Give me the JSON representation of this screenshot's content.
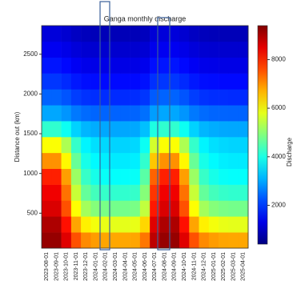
{
  "chart_data": {
    "type": "heatmap",
    "title": "Ganga monthly discharge",
    "y_label": "Distance out (km)",
    "colorbar_label": "Discharge",
    "x": [
      "2023-08-01",
      "2023-09-01",
      "2023-10-01",
      "2023-11-01",
      "2023-12-01",
      "2024-01-01",
      "2024-02-01",
      "2024-03-01",
      "2024-04-01",
      "2024-05-01",
      "2024-06-01",
      "2024-07-01",
      "2024-08-01",
      "2024-09-01",
      "2024-10-01",
      "2024-11-01",
      "2024-12-01",
      "2025-01-01",
      "2025-02-01",
      "2025-03-01",
      "2025-04-01"
    ],
    "y_bins": [
      60,
      260,
      460,
      660,
      860,
      1060,
      1260,
      1460,
      1660,
      1860,
      2060,
      2260,
      2460,
      2660,
      2860
    ],
    "ylim": [
      60,
      2860
    ],
    "yticks": [
      500,
      1000,
      1500,
      2000,
      2500
    ],
    "colormap": "jet",
    "zlim": [
      400,
      9400
    ],
    "zticks": [
      2000,
      4000,
      6000,
      8000
    ],
    "z": [
      [
        9200,
        9200,
        8550,
        7570,
        7060,
        6900,
        6820,
        6800,
        6800,
        6820,
        7230,
        8860,
        9200,
        9200,
        8550,
        7570,
        7060,
        6900,
        6820,
        6800,
        6800
      ],
      [
        9000,
        9000,
        8140,
        6820,
        6150,
        5930,
        5830,
        5800,
        5800,
        5830,
        6380,
        8550,
        9000,
        9000,
        8140,
        6820,
        6150,
        5930,
        5830,
        5800,
        5800
      ],
      [
        8600,
        8600,
        7570,
        6020,
        5220,
        4950,
        4840,
        4800,
        4800,
        4840,
        5480,
        8070,
        8600,
        8600,
        7570,
        6020,
        5220,
        4950,
        4840,
        4800,
        4800
      ],
      [
        8400,
        8400,
        7270,
        5540,
        4660,
        4370,
        4240,
        4200,
        4200,
        4240,
        4960,
        7810,
        8400,
        8400,
        7270,
        5540,
        4660,
        4370,
        4240,
        4200,
        4200
      ],
      [
        8000,
        8000,
        6870,
        5140,
        4260,
        3970,
        3840,
        3800,
        3800,
        3840,
        4560,
        7410,
        8000,
        8000,
        6870,
        5140,
        4260,
        3970,
        3840,
        3800,
        3800
      ],
      [
        7000,
        7000,
        6080,
        4690,
        3970,
        3740,
        3630,
        3600,
        3600,
        3630,
        4210,
        6520,
        7000,
        7000,
        6080,
        4690,
        3970,
        3740,
        3630,
        3600,
        3600
      ],
      [
        6000,
        6000,
        5300,
        4230,
        3690,
        3500,
        3430,
        3400,
        3400,
        3430,
        3870,
        5640,
        6000,
        6000,
        5300,
        4230,
        3690,
        3500,
        3430,
        3400,
        3400
      ],
      [
        4200,
        4200,
        3880,
        3380,
        3130,
        3050,
        3010,
        3000,
        3000,
        3010,
        3220,
        4030,
        4200,
        4200,
        3880,
        3380,
        3130,
        3050,
        3010,
        3000,
        3000
      ],
      [
        3000,
        3000,
        2840,
        2590,
        2470,
        2420,
        2410,
        2400,
        2400,
        2410,
        2510,
        2920,
        3000,
        3000,
        2840,
        2590,
        2470,
        2420,
        2410,
        2400,
        2400
      ],
      [
        2400,
        2400,
        2270,
        2060,
        1960,
        1920,
        1910,
        1900,
        1900,
        1910,
        1990,
        2330,
        2400,
        2400,
        2270,
        2060,
        1960,
        1920,
        1910,
        1900,
        1900
      ],
      [
        2000,
        2000,
        1890,
        1730,
        1640,
        1620,
        1600,
        1600,
        1600,
        1600,
        1670,
        1940,
        2000,
        2000,
        1890,
        1730,
        1640,
        1620,
        1600,
        1600,
        1600
      ],
      [
        1700,
        1700,
        1590,
        1430,
        1340,
        1320,
        1300,
        1300,
        1300,
        1300,
        1370,
        1640,
        1700,
        1700,
        1590,
        1430,
        1340,
        1320,
        1300,
        1300,
        1300
      ],
      [
        1400,
        1400,
        1320,
        1200,
        1130,
        1110,
        1100,
        1100,
        1100,
        1100,
        1150,
        1360,
        1400,
        1400,
        1320,
        1200,
        1130,
        1110,
        1100,
        1100,
        1100
      ],
      [
        1200,
        1200,
        1120,
        1000,
        930,
        910,
        900,
        900,
        900,
        900,
        950,
        1160,
        1200,
        1200,
        1120,
        1000,
        930,
        910,
        900,
        900,
        900
      ]
    ]
  }
}
